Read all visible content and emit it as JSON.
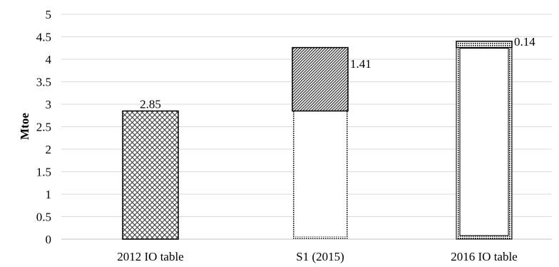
{
  "chart_data": {
    "type": "bar",
    "stacked": true,
    "ylabel": "Mtoe",
    "ylim": [
      0,
      5
    ],
    "ytick_labels": [
      "0",
      "0.5",
      "1",
      "1.5",
      "2",
      "2.5",
      "3",
      "3.5",
      "4",
      "4.5",
      "5"
    ],
    "ytick_values": [
      0,
      0.5,
      1,
      1.5,
      2,
      2.5,
      3,
      3.5,
      4,
      4.5,
      5
    ],
    "categories": [
      "2012 IO table",
      "S1 (2015)",
      "2016 IO table"
    ],
    "grid": true,
    "legend": "none",
    "bars": [
      {
        "category": "2012 IO table",
        "segments": [
          {
            "value": 2.85,
            "pattern": "crosshatch"
          }
        ],
        "label": "2.85",
        "label_position": "top"
      },
      {
        "category": "S1 (2015)",
        "segments": [
          {
            "value": 2.85,
            "pattern": "hollow"
          },
          {
            "value": 1.41,
            "pattern": "diagonal"
          }
        ],
        "label": "1.41",
        "label_position": "right"
      },
      {
        "category": "2016 IO table",
        "segments": [
          {
            "value": 4.26,
            "pattern": "hollow-dotted-border"
          },
          {
            "value": 0.14,
            "pattern": "dots"
          }
        ],
        "label": "0.14",
        "label_position": "right"
      }
    ]
  }
}
